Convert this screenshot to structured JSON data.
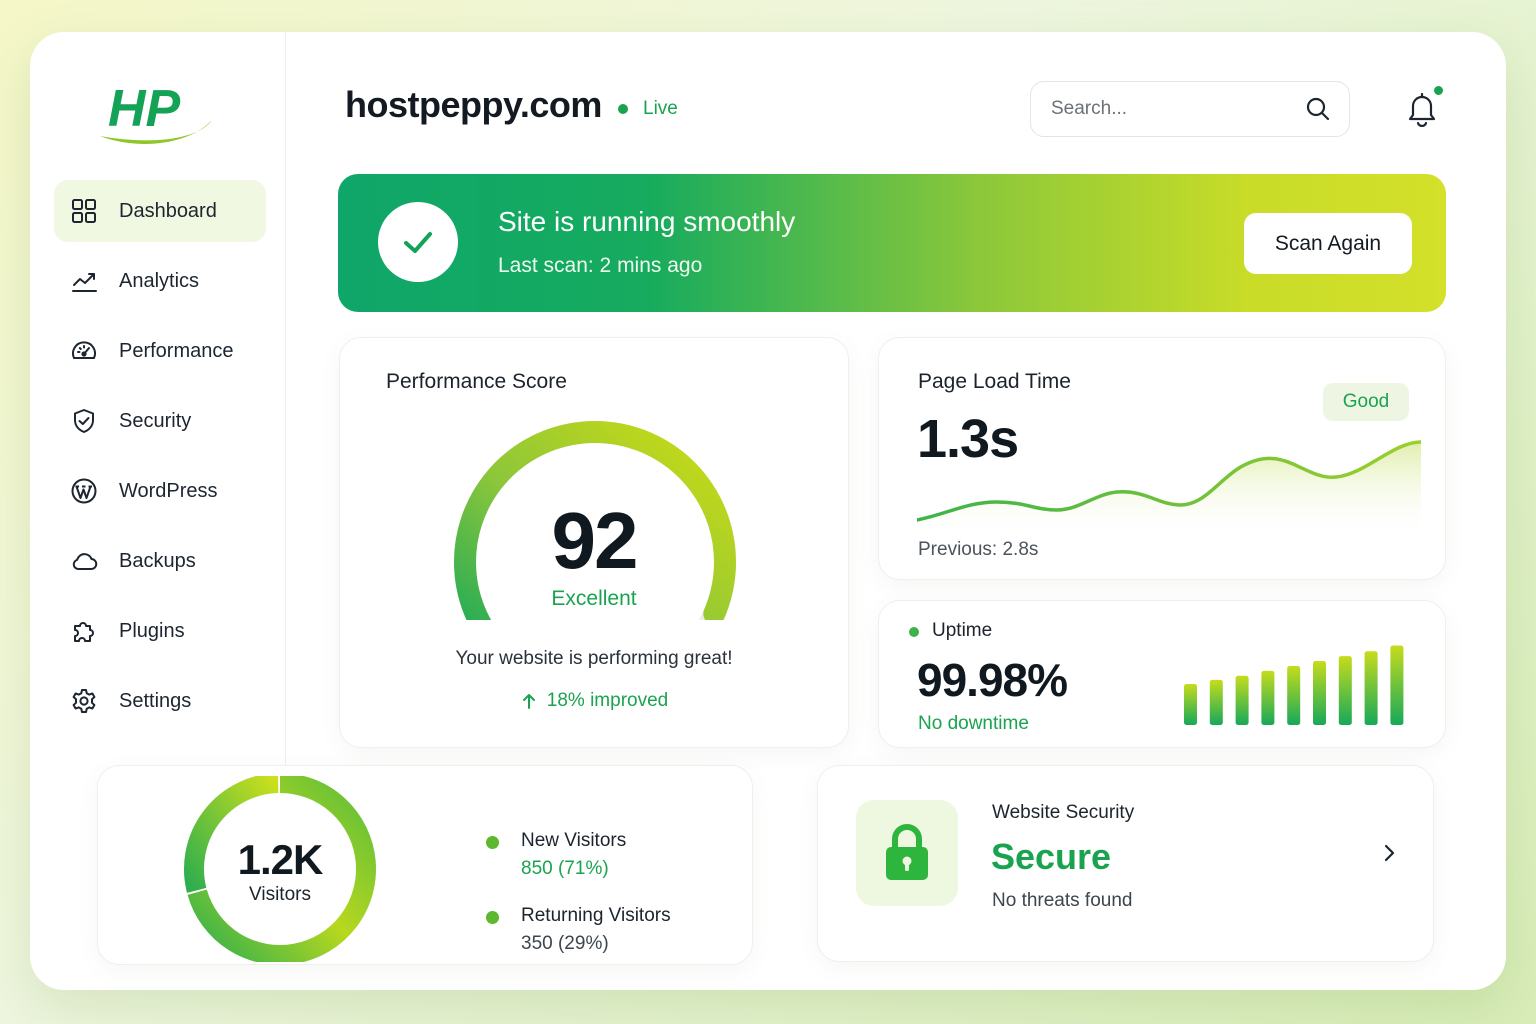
{
  "brand": {
    "logo_text": "HP"
  },
  "sidebar": {
    "items": [
      {
        "label": "Dashboard",
        "icon": "dashboard-grid-icon",
        "active": true
      },
      {
        "label": "Analytics",
        "icon": "trend-line-icon",
        "active": false
      },
      {
        "label": "Performance",
        "icon": "speedometer-icon",
        "active": false
      },
      {
        "label": "Security",
        "icon": "shield-check-icon",
        "active": false
      },
      {
        "label": "WordPress",
        "icon": "wordpress-icon",
        "active": false
      },
      {
        "label": "Backups",
        "icon": "cloud-icon",
        "active": false
      },
      {
        "label": "Plugins",
        "icon": "puzzle-icon",
        "active": false
      },
      {
        "label": "Settings",
        "icon": "gear-icon",
        "active": false
      }
    ]
  },
  "header": {
    "site": "hostpeppy.com",
    "status": "Live",
    "search_placeholder": "Search...",
    "notification_unread": true
  },
  "banner": {
    "title": "Site is running smoothly",
    "subtitle": "Last scan: 2 mins ago",
    "button_label": "Scan Again"
  },
  "performance": {
    "title": "Performance Score",
    "score": "92",
    "score_fraction": 0.92,
    "rating": "Excellent",
    "message": "Your website is performing great!",
    "improvement": "18% improved"
  },
  "page_load": {
    "title": "Page Load Time",
    "value": "1.3s",
    "badge": "Good",
    "previous": "Previous: 2.8s"
  },
  "uptime": {
    "title": "Uptime",
    "value": "99.98%",
    "subtitle": "No downtime",
    "bar_levels": [
      0.5,
      0.55,
      0.6,
      0.66,
      0.72,
      0.78,
      0.84,
      0.9,
      0.97
    ]
  },
  "visitors": {
    "total": "1.2K",
    "label": "Visitors",
    "segments": [
      {
        "name": "New Visitors",
        "value": "850 (71%)",
        "fraction": 0.71,
        "color": "#5cb82e"
      },
      {
        "name": "Returning Visitors",
        "value": "350 (29%)",
        "fraction": 0.29,
        "color": "#5cb82e"
      }
    ]
  },
  "security": {
    "title": "Website Security",
    "status": "Secure",
    "subtitle": "No threats found"
  },
  "colors": {
    "accent_green": "#1aa34f",
    "lime": "#c8dc28",
    "text_dark": "#111920"
  }
}
